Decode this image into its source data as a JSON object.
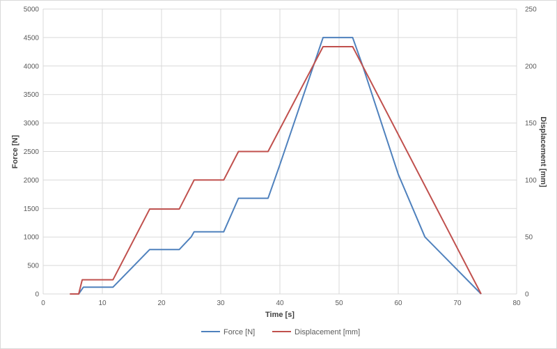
{
  "chart_data": {
    "type": "line",
    "title": "",
    "xlabel": "Time [s]",
    "ylabel": "Force [N]",
    "y2label": "Displacement [mm]",
    "xlim": [
      0,
      80
    ],
    "ylim": [
      0,
      5000
    ],
    "y2lim": [
      0,
      250
    ],
    "xticks": [
      0,
      10,
      20,
      30,
      40,
      50,
      60,
      70,
      80
    ],
    "yticks": [
      0,
      500,
      1000,
      1500,
      2000,
      2500,
      3000,
      3500,
      4000,
      4500,
      5000
    ],
    "y2ticks": [
      0,
      50,
      100,
      150,
      200,
      250
    ],
    "grid": true,
    "legend_position": "bottom",
    "series": [
      {
        "name": "Force [N]",
        "axis": "left",
        "color": "#4f81bd",
        "x": [
          5.5,
          6,
          6.8,
          11.8,
          18,
          23,
          25,
          25.5,
          30.5,
          33,
          38,
          40,
          47.3,
          52.3,
          54,
          60,
          64.5,
          74
        ],
        "y": [
          0,
          0,
          120,
          120,
          780,
          780,
          1000,
          1090,
          1090,
          1680,
          1680,
          2270,
          4500,
          4500,
          4000,
          2100,
          1000,
          0
        ]
      },
      {
        "name": "Displacement [mm]",
        "axis": "right",
        "color": "#c0504d",
        "x": [
          4.5,
          6,
          6.6,
          11.8,
          18,
          23,
          25.5,
          30.5,
          33,
          38,
          47.3,
          52.3,
          74
        ],
        "y": [
          0,
          0,
          12.5,
          12.5,
          74.5,
          74.5,
          100,
          100,
          125,
          125,
          217,
          217,
          0
        ]
      }
    ]
  }
}
